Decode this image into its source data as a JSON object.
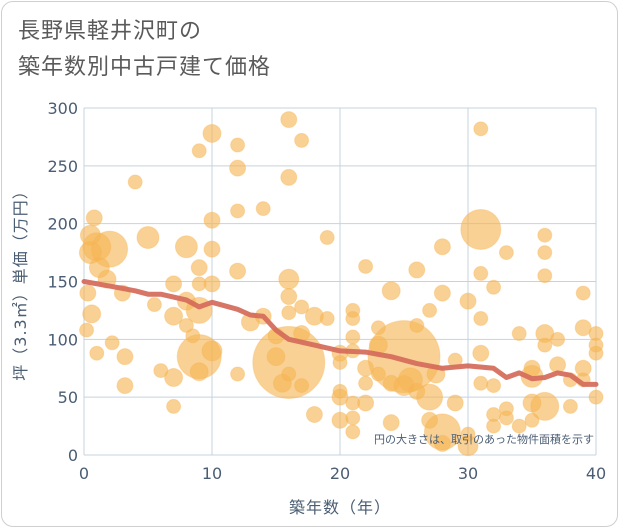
{
  "title_lines": [
    "長野県軽井沢町の",
    "築年数別中古戸建て価格"
  ],
  "chart_data": {
    "type": "scatter",
    "title": "長野県軽井沢町の築年数別中古戸建て価格",
    "xlabel": "築年数（年）",
    "ylabel": "坪（3.3㎡）単価（万円）",
    "xlim": [
      0,
      40
    ],
    "ylim": [
      0,
      300
    ],
    "x_ticks": [
      0,
      10,
      20,
      30,
      40
    ],
    "y_ticks": [
      0,
      50,
      100,
      150,
      200,
      250,
      300
    ],
    "grid": true,
    "annotation": "円の大きさは、取引のあった物件面積を示す",
    "colors": {
      "bubble": "#f5b554",
      "trend": "#d46a5a",
      "grid": "#c5d3df",
      "text": "#4a5d73"
    },
    "points": [
      {
        "x": 0.5,
        "y": 190,
        "s": 10
      },
      {
        "x": 0.8,
        "y": 205,
        "s": 8
      },
      {
        "x": 1,
        "y": 180,
        "s": 14
      },
      {
        "x": 0.5,
        "y": 175,
        "s": 11
      },
      {
        "x": 1.2,
        "y": 162,
        "s": 10
      },
      {
        "x": 2,
        "y": 178,
        "s": 18
      },
      {
        "x": 1.8,
        "y": 152,
        "s": 9
      },
      {
        "x": 0.3,
        "y": 140,
        "s": 8
      },
      {
        "x": 0.6,
        "y": 122,
        "s": 9
      },
      {
        "x": 0.2,
        "y": 108,
        "s": 7
      },
      {
        "x": 1,
        "y": 88,
        "s": 7
      },
      {
        "x": 2.2,
        "y": 97,
        "s": 7
      },
      {
        "x": 3,
        "y": 140,
        "s": 8
      },
      {
        "x": 3.2,
        "y": 85,
        "s": 8
      },
      {
        "x": 3.2,
        "y": 60,
        "s": 8
      },
      {
        "x": 4,
        "y": 236,
        "s": 7
      },
      {
        "x": 5,
        "y": 188,
        "s": 11
      },
      {
        "x": 5.5,
        "y": 130,
        "s": 7
      },
      {
        "x": 6,
        "y": 73,
        "s": 7
      },
      {
        "x": 7,
        "y": 148,
        "s": 8
      },
      {
        "x": 7,
        "y": 120,
        "s": 9
      },
      {
        "x": 7,
        "y": 67,
        "s": 9
      },
      {
        "x": 7,
        "y": 42,
        "s": 7
      },
      {
        "x": 8,
        "y": 180,
        "s": 11
      },
      {
        "x": 8,
        "y": 133,
        "s": 9
      },
      {
        "x": 8,
        "y": 112,
        "s": 7
      },
      {
        "x": 8.5,
        "y": 103,
        "s": 7
      },
      {
        "x": 9,
        "y": 263,
        "s": 7
      },
      {
        "x": 9,
        "y": 162,
        "s": 8
      },
      {
        "x": 9,
        "y": 148,
        "s": 7
      },
      {
        "x": 9,
        "y": 125,
        "s": 13
      },
      {
        "x": 9,
        "y": 85,
        "s": 22
      },
      {
        "x": 9,
        "y": 72,
        "s": 9
      },
      {
        "x": 10,
        "y": 278,
        "s": 9
      },
      {
        "x": 10,
        "y": 203,
        "s": 8
      },
      {
        "x": 10,
        "y": 178,
        "s": 8
      },
      {
        "x": 10,
        "y": 148,
        "s": 8
      },
      {
        "x": 10,
        "y": 90,
        "s": 10
      },
      {
        "x": 12,
        "y": 268,
        "s": 7
      },
      {
        "x": 12,
        "y": 248,
        "s": 8
      },
      {
        "x": 12,
        "y": 211,
        "s": 7
      },
      {
        "x": 12,
        "y": 159,
        "s": 8
      },
      {
        "x": 12,
        "y": 70,
        "s": 7
      },
      {
        "x": 13,
        "y": 115,
        "s": 9
      },
      {
        "x": 14,
        "y": 213,
        "s": 7
      },
      {
        "x": 14,
        "y": 120,
        "s": 8
      },
      {
        "x": 15,
        "y": 103,
        "s": 8
      },
      {
        "x": 15,
        "y": 85,
        "s": 9
      },
      {
        "x": 15.5,
        "y": 62,
        "s": 9
      },
      {
        "x": 16,
        "y": 290,
        "s": 8
      },
      {
        "x": 16,
        "y": 240,
        "s": 8
      },
      {
        "x": 16,
        "y": 152,
        "s": 10
      },
      {
        "x": 16,
        "y": 137,
        "s": 8
      },
      {
        "x": 16,
        "y": 123,
        "s": 7
      },
      {
        "x": 16,
        "y": 80,
        "s": 36
      },
      {
        "x": 16,
        "y": 70,
        "s": 7
      },
      {
        "x": 17,
        "y": 272,
        "s": 7
      },
      {
        "x": 17,
        "y": 128,
        "s": 7
      },
      {
        "x": 17,
        "y": 105,
        "s": 8
      },
      {
        "x": 17,
        "y": 60,
        "s": 7
      },
      {
        "x": 18,
        "y": 120,
        "s": 9
      },
      {
        "x": 18,
        "y": 35,
        "s": 8
      },
      {
        "x": 19,
        "y": 188,
        "s": 7
      },
      {
        "x": 19,
        "y": 118,
        "s": 7
      },
      {
        "x": 20,
        "y": 88,
        "s": 8
      },
      {
        "x": 20,
        "y": 80,
        "s": 7
      },
      {
        "x": 20,
        "y": 55,
        "s": 7
      },
      {
        "x": 20,
        "y": 50,
        "s": 8
      },
      {
        "x": 20,
        "y": 30,
        "s": 8
      },
      {
        "x": 21,
        "y": 125,
        "s": 7
      },
      {
        "x": 21,
        "y": 118,
        "s": 7
      },
      {
        "x": 21,
        "y": 102,
        "s": 7
      },
      {
        "x": 21,
        "y": 90,
        "s": 7
      },
      {
        "x": 21,
        "y": 45,
        "s": 7
      },
      {
        "x": 21,
        "y": 32,
        "s": 7
      },
      {
        "x": 21,
        "y": 20,
        "s": 7
      },
      {
        "x": 22,
        "y": 163,
        "s": 7
      },
      {
        "x": 22,
        "y": 75,
        "s": 8
      },
      {
        "x": 22,
        "y": 62,
        "s": 7
      },
      {
        "x": 22,
        "y": 45,
        "s": 8
      },
      {
        "x": 23,
        "y": 110,
        "s": 7
      },
      {
        "x": 23,
        "y": 95,
        "s": 9
      },
      {
        "x": 23,
        "y": 70,
        "s": 7
      },
      {
        "x": 24,
        "y": 142,
        "s": 9
      },
      {
        "x": 24,
        "y": 62,
        "s": 8
      },
      {
        "x": 24,
        "y": 28,
        "s": 8
      },
      {
        "x": 25,
        "y": 85,
        "s": 36
      },
      {
        "x": 25,
        "y": 60,
        "s": 10
      },
      {
        "x": 25.5,
        "y": 65,
        "s": 12
      },
      {
        "x": 26,
        "y": 160,
        "s": 8
      },
      {
        "x": 26,
        "y": 112,
        "s": 7
      },
      {
        "x": 26,
        "y": 55,
        "s": 8
      },
      {
        "x": 27,
        "y": 125,
        "s": 7
      },
      {
        "x": 27,
        "y": 50,
        "s": 13
      },
      {
        "x": 27,
        "y": 30,
        "s": 8
      },
      {
        "x": 27.5,
        "y": 70,
        "s": 9
      },
      {
        "x": 28,
        "y": 180,
        "s": 8
      },
      {
        "x": 28,
        "y": 140,
        "s": 8
      },
      {
        "x": 28,
        "y": 20,
        "s": 18
      },
      {
        "x": 28,
        "y": 10,
        "s": 8
      },
      {
        "x": 29,
        "y": 82,
        "s": 7
      },
      {
        "x": 29,
        "y": 45,
        "s": 8
      },
      {
        "x": 30,
        "y": 133,
        "s": 8
      },
      {
        "x": 30,
        "y": 8,
        "s": 10
      },
      {
        "x": 30,
        "y": 18,
        "s": 7
      },
      {
        "x": 31,
        "y": 282,
        "s": 7
      },
      {
        "x": 31,
        "y": 195,
        "s": 20
      },
      {
        "x": 31,
        "y": 157,
        "s": 7
      },
      {
        "x": 31,
        "y": 118,
        "s": 7
      },
      {
        "x": 31,
        "y": 88,
        "s": 8
      },
      {
        "x": 31,
        "y": 62,
        "s": 7
      },
      {
        "x": 32,
        "y": 145,
        "s": 7
      },
      {
        "x": 32,
        "y": 60,
        "s": 7
      },
      {
        "x": 32,
        "y": 35,
        "s": 7
      },
      {
        "x": 32,
        "y": 25,
        "s": 7
      },
      {
        "x": 33,
        "y": 175,
        "s": 7
      },
      {
        "x": 33,
        "y": 40,
        "s": 7
      },
      {
        "x": 33,
        "y": 32,
        "s": 7
      },
      {
        "x": 34,
        "y": 105,
        "s": 7
      },
      {
        "x": 34,
        "y": 25,
        "s": 7
      },
      {
        "x": 35,
        "y": 75,
        "s": 8
      },
      {
        "x": 35,
        "y": 68,
        "s": 11
      },
      {
        "x": 35,
        "y": 45,
        "s": 9
      },
      {
        "x": 35,
        "y": 30,
        "s": 7
      },
      {
        "x": 36,
        "y": 190,
        "s": 7
      },
      {
        "x": 36,
        "y": 175,
        "s": 7
      },
      {
        "x": 36,
        "y": 155,
        "s": 7
      },
      {
        "x": 36,
        "y": 105,
        "s": 9
      },
      {
        "x": 36,
        "y": 95,
        "s": 7
      },
      {
        "x": 36,
        "y": 42,
        "s": 14
      },
      {
        "x": 37,
        "y": 100,
        "s": 7
      },
      {
        "x": 37,
        "y": 78,
        "s": 8
      },
      {
        "x": 38,
        "y": 65,
        "s": 7
      },
      {
        "x": 38,
        "y": 42,
        "s": 7
      },
      {
        "x": 39,
        "y": 140,
        "s": 7
      },
      {
        "x": 39,
        "y": 110,
        "s": 8
      },
      {
        "x": 39,
        "y": 75,
        "s": 8
      },
      {
        "x": 39,
        "y": 65,
        "s": 7
      },
      {
        "x": 40,
        "y": 105,
        "s": 7
      },
      {
        "x": 40,
        "y": 95,
        "s": 7
      },
      {
        "x": 40,
        "y": 88,
        "s": 7
      },
      {
        "x": 40,
        "y": 50,
        "s": 7
      }
    ],
    "trend_line": {
      "x": [
        0,
        2,
        4,
        5,
        6,
        8,
        9,
        10,
        12,
        13,
        14,
        15,
        16,
        18,
        20,
        22,
        24,
        26,
        27,
        28,
        30,
        32,
        33,
        34,
        35,
        36,
        37,
        38,
        39,
        40
      ],
      "y": [
        150,
        146,
        142,
        139,
        139,
        134,
        128,
        132,
        126,
        121,
        120,
        108,
        100,
        95,
        90,
        89,
        85,
        79,
        77,
        75,
        77,
        75,
        67,
        71,
        66,
        67,
        71,
        69,
        61,
        61
      ]
    }
  }
}
